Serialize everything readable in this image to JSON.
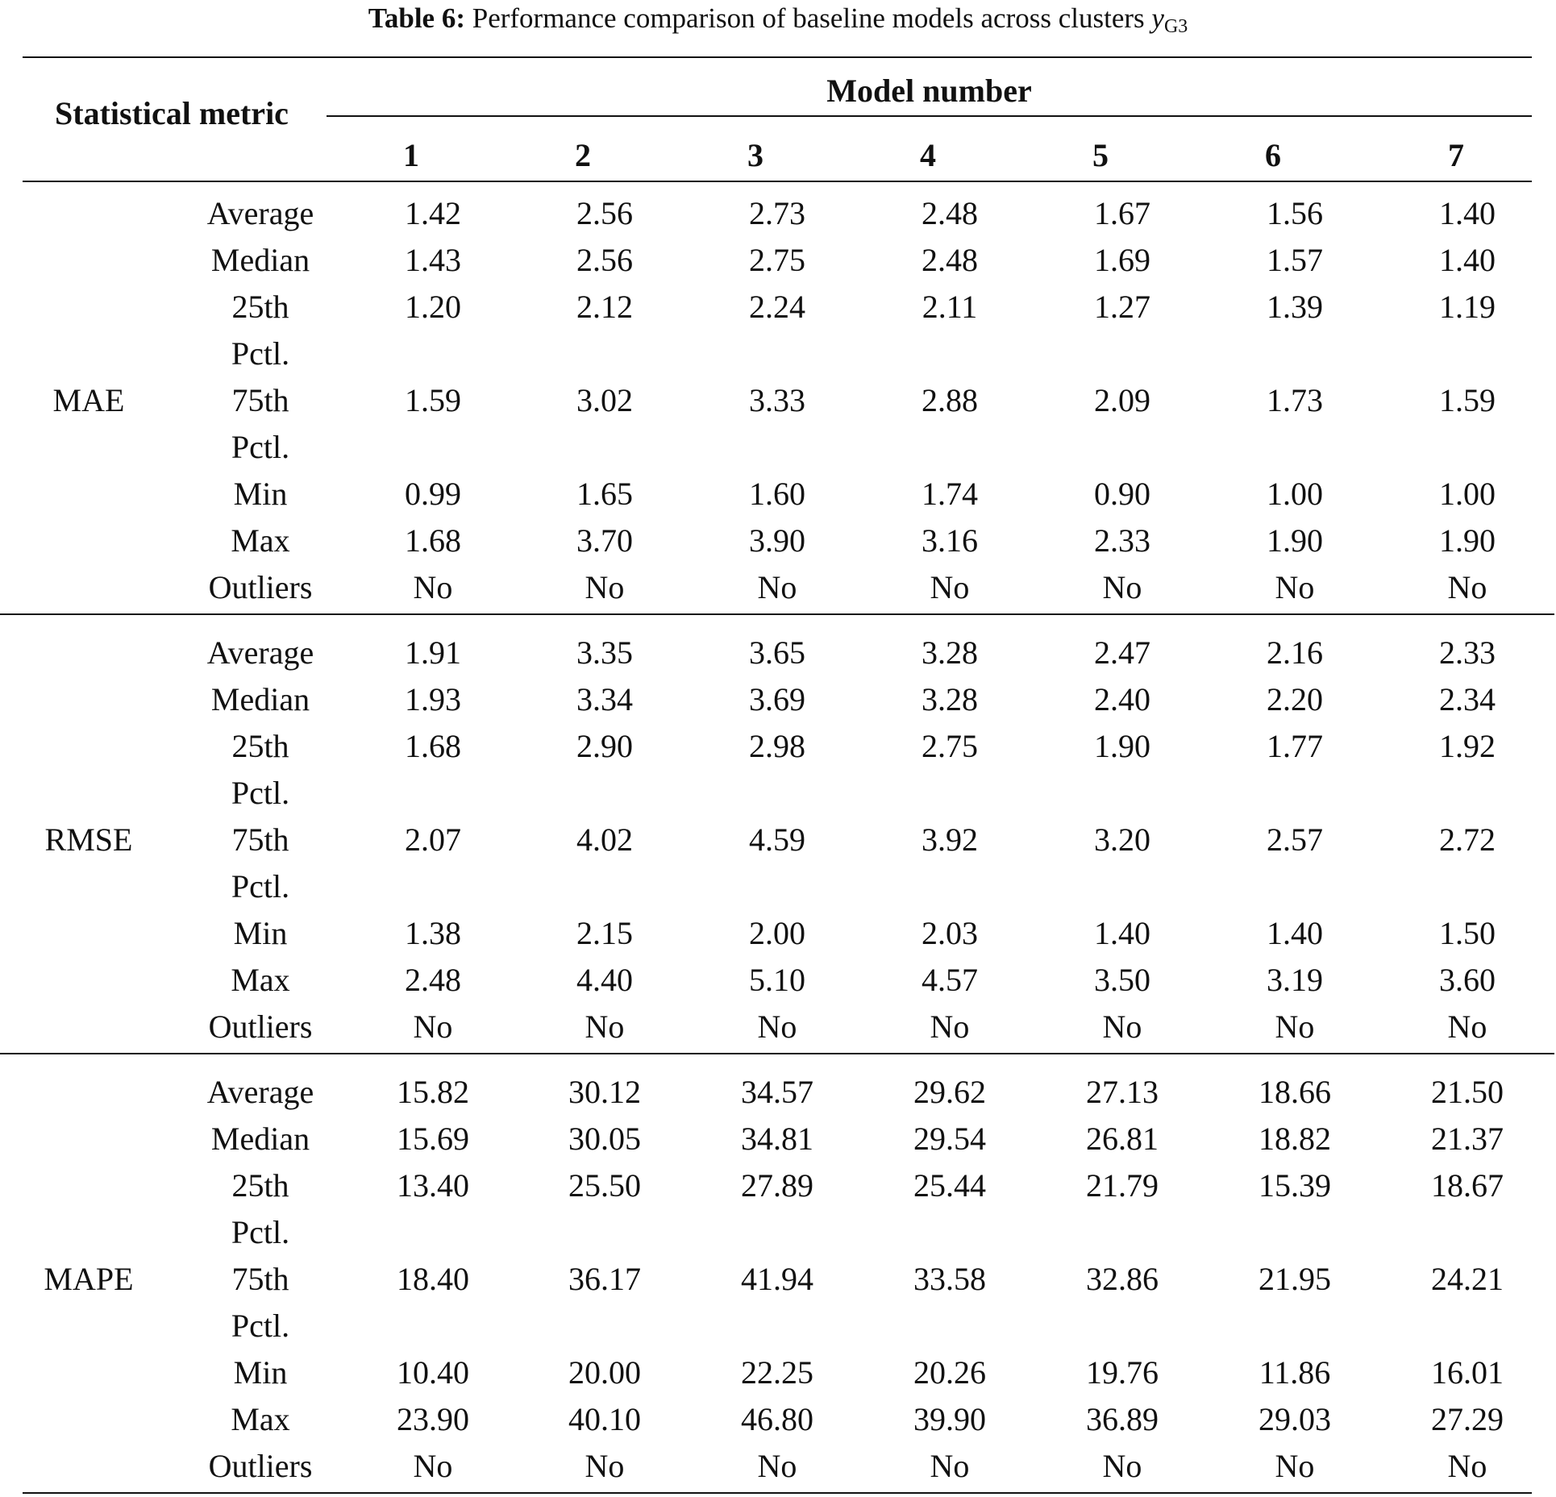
{
  "caption": {
    "label": "Table 6:",
    "text": "Performance comparison of baseline models across clusters",
    "math_var": "y",
    "math_sub": "G3"
  },
  "header": {
    "metric": "Statistical metric",
    "model_group": "Model number",
    "models": [
      "1",
      "2",
      "3",
      "4",
      "5",
      "6",
      "7"
    ]
  },
  "sections": [
    {
      "metric": "MAE",
      "rows": [
        {
          "stat": "Average",
          "values": [
            "1.42",
            "2.56",
            "2.73",
            "2.48",
            "1.67",
            "1.56",
            "1.40"
          ]
        },
        {
          "stat": "Median",
          "values": [
            "1.43",
            "2.56",
            "2.75",
            "2.48",
            "1.69",
            "1.57",
            "1.40"
          ]
        },
        {
          "stat": "25th Pctl.",
          "values": [
            "1.20",
            "2.12",
            "2.24",
            "2.11",
            "1.27",
            "1.39",
            "1.19"
          ]
        },
        {
          "stat": "75th Pctl.",
          "values": [
            "1.59",
            "3.02",
            "3.33",
            "2.88",
            "2.09",
            "1.73",
            "1.59"
          ]
        },
        {
          "stat": "Min",
          "values": [
            "0.99",
            "1.65",
            "1.60",
            "1.74",
            "0.90",
            "1.00",
            "1.00"
          ]
        },
        {
          "stat": "Max",
          "values": [
            "1.68",
            "3.70",
            "3.90",
            "3.16",
            "2.33",
            "1.90",
            "1.90"
          ]
        },
        {
          "stat": "Outliers",
          "values": [
            "No",
            "No",
            "No",
            "No",
            "No",
            "No",
            "No"
          ]
        }
      ]
    },
    {
      "metric": "RMSE",
      "rows": [
        {
          "stat": "Average",
          "values": [
            "1.91",
            "3.35",
            "3.65",
            "3.28",
            "2.47",
            "2.16",
            "2.33"
          ]
        },
        {
          "stat": "Median",
          "values": [
            "1.93",
            "3.34",
            "3.69",
            "3.28",
            "2.40",
            "2.20",
            "2.34"
          ]
        },
        {
          "stat": "25th Pctl.",
          "values": [
            "1.68",
            "2.90",
            "2.98",
            "2.75",
            "1.90",
            "1.77",
            "1.92"
          ]
        },
        {
          "stat": "75th Pctl.",
          "values": [
            "2.07",
            "4.02",
            "4.59",
            "3.92",
            "3.20",
            "2.57",
            "2.72"
          ]
        },
        {
          "stat": "Min",
          "values": [
            "1.38",
            "2.15",
            "2.00",
            "2.03",
            "1.40",
            "1.40",
            "1.50"
          ]
        },
        {
          "stat": "Max",
          "values": [
            "2.48",
            "4.40",
            "5.10",
            "4.57",
            "3.50",
            "3.19",
            "3.60"
          ]
        },
        {
          "stat": "Outliers",
          "values": [
            "No",
            "No",
            "No",
            "No",
            "No",
            "No",
            "No"
          ]
        }
      ]
    },
    {
      "metric": "MAPE",
      "rows": [
        {
          "stat": "Average",
          "values": [
            "15.82",
            "30.12",
            "34.57",
            "29.62",
            "27.13",
            "18.66",
            "21.50"
          ]
        },
        {
          "stat": "Median",
          "values": [
            "15.69",
            "30.05",
            "34.81",
            "29.54",
            "26.81",
            "18.82",
            "21.37"
          ]
        },
        {
          "stat": "25th Pctl.",
          "values": [
            "13.40",
            "25.50",
            "27.89",
            "25.44",
            "21.79",
            "15.39",
            "18.67"
          ]
        },
        {
          "stat": "75th Pctl.",
          "values": [
            "18.40",
            "36.17",
            "41.94",
            "33.58",
            "32.86",
            "21.95",
            "24.21"
          ]
        },
        {
          "stat": "Min",
          "values": [
            "10.40",
            "20.00",
            "22.25",
            "20.26",
            "19.76",
            "11.86",
            "16.01"
          ]
        },
        {
          "stat": "Max",
          "values": [
            "23.90",
            "40.10",
            "46.80",
            "39.90",
            "36.89",
            "29.03",
            "27.29"
          ]
        },
        {
          "stat": "Outliers",
          "values": [
            "No",
            "No",
            "No",
            "No",
            "No",
            "No",
            "No"
          ]
        }
      ]
    }
  ]
}
